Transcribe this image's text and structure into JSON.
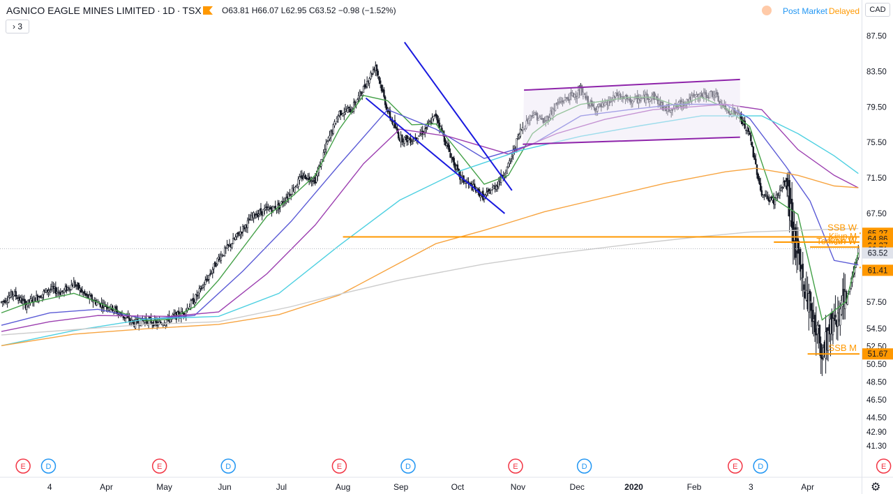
{
  "header": {
    "symbol": "AGNICO EAGLE MINES LIMITED",
    "interval": "1D",
    "exchange": "TSX",
    "ohlc": {
      "open": "63.81",
      "high": "66.07",
      "low": "62.95",
      "close": "63.52",
      "change": "−0.98 (−1.52%)"
    },
    "collapse_label": "3",
    "post_market": "Post Market",
    "delayed": "Delayed",
    "currency": "CAD"
  },
  "colors": {
    "up": "#131722",
    "down": "#131722",
    "ema_green": "#43a047",
    "ema_blue": "#5b5bd6",
    "ema_purple": "#9c3fb0",
    "ema_cyan": "#4dd0e1",
    "ema_orange": "#f7a440",
    "ema_grey": "#cccccc",
    "level": "#ff9800",
    "trendline_blue": "#1a1adf",
    "trendline_purple": "#8e24aa",
    "earnings": "#f23645",
    "dividend": "#2196f3"
  },
  "chart_data": {
    "type": "candlestick",
    "x_axis_labels": [
      "4",
      "Apr",
      "May",
      "Jun",
      "Jul",
      "Aug",
      "Sep",
      "Oct",
      "Nov",
      "Dec",
      "2020",
      "Feb",
      "3",
      "Apr"
    ],
    "y_axis_labels": [
      "87.50",
      "83.50",
      "79.50",
      "75.50",
      "71.50",
      "67.50",
      "57.50",
      "54.50",
      "52.50",
      "50.50",
      "48.50",
      "46.50",
      "44.50",
      "42.90",
      "41.30"
    ],
    "ylim": [
      40.6,
      89.2
    ],
    "price_path": [
      [
        0,
        57.5
      ],
      [
        10,
        58.5
      ],
      [
        20,
        57.2
      ],
      [
        30,
        58.1
      ],
      [
        40,
        59.0
      ],
      [
        50,
        58.6
      ],
      [
        60,
        59.6
      ],
      [
        70,
        58.2
      ],
      [
        80,
        57.4
      ],
      [
        90,
        57.0
      ],
      [
        100,
        56.0
      ],
      [
        110,
        55.1
      ],
      [
        120,
        55.5
      ],
      [
        130,
        55.0
      ],
      [
        140,
        55.7
      ],
      [
        150,
        56.2
      ],
      [
        160,
        57.8
      ],
      [
        170,
        60.0
      ],
      [
        180,
        62.5
      ],
      [
        190,
        64.0
      ],
      [
        200,
        65.8
      ],
      [
        210,
        67.4
      ],
      [
        220,
        67.9
      ],
      [
        230,
        68.3
      ],
      [
        240,
        70.0
      ],
      [
        250,
        71.8
      ],
      [
        260,
        71.3
      ],
      [
        270,
        75.5
      ],
      [
        280,
        78.9
      ],
      [
        290,
        79.2
      ],
      [
        300,
        81.6
      ],
      [
        310,
        84.2
      ],
      [
        320,
        79.0
      ],
      [
        330,
        76.0
      ],
      [
        340,
        75.8
      ],
      [
        350,
        76.8
      ],
      [
        360,
        78.6
      ],
      [
        370,
        74.8
      ],
      [
        380,
        71.5
      ],
      [
        390,
        70.5
      ],
      [
        400,
        69.3
      ],
      [
        410,
        70.7
      ],
      [
        420,
        72.8
      ],
      [
        430,
        76.8
      ],
      [
        440,
        78.8
      ],
      [
        450,
        77.8
      ],
      [
        460,
        79.8
      ],
      [
        470,
        80.6
      ],
      [
        480,
        81.2
      ],
      [
        490,
        79.4
      ],
      [
        500,
        79.6
      ],
      [
        510,
        80.8
      ],
      [
        520,
        80.2
      ],
      [
        530,
        80.4
      ],
      [
        540,
        80.8
      ],
      [
        550,
        79.2
      ],
      [
        560,
        79.6
      ],
      [
        570,
        80.4
      ],
      [
        580,
        80.8
      ],
      [
        590,
        81.0
      ],
      [
        600,
        79.2
      ],
      [
        610,
        78.8
      ],
      [
        620,
        76.2
      ],
      [
        630,
        69.6
      ],
      [
        640,
        68.9
      ],
      [
        650,
        71.1
      ],
      [
        660,
        62.0
      ],
      [
        670,
        57.0
      ],
      [
        680,
        52.0
      ],
      [
        690,
        55.8
      ],
      [
        700,
        57.5
      ],
      [
        710,
        63.5
      ]
    ],
    "series": [
      {
        "name": "",
        "color": "ema_green",
        "values": [
          [
            0,
            56.3
          ],
          [
            20,
            57.3
          ],
          [
            40,
            57.9
          ],
          [
            60,
            58.5
          ],
          [
            80,
            57.5
          ],
          [
            100,
            56.3
          ],
          [
            120,
            55.4
          ],
          [
            140,
            55.6
          ],
          [
            160,
            57.0
          ],
          [
            180,
            60.0
          ],
          [
            200,
            63.6
          ],
          [
            220,
            67.2
          ],
          [
            240,
            69.3
          ],
          [
            260,
            71.8
          ],
          [
            280,
            77.0
          ],
          [
            300,
            80.8
          ],
          [
            320,
            80.2
          ],
          [
            340,
            77.5
          ],
          [
            360,
            77.6
          ],
          [
            380,
            74.2
          ],
          [
            400,
            70.8
          ],
          [
            420,
            71.8
          ],
          [
            440,
            76.5
          ],
          [
            460,
            78.6
          ],
          [
            480,
            79.8
          ],
          [
            500,
            80.2
          ],
          [
            520,
            80.6
          ],
          [
            540,
            80.6
          ],
          [
            560,
            79.6
          ],
          [
            580,
            80.6
          ],
          [
            600,
            79.4
          ],
          [
            620,
            77.3
          ],
          [
            640,
            69.2
          ],
          [
            660,
            67.4
          ],
          [
            680,
            55.5
          ],
          [
            700,
            57.6
          ],
          [
            710,
            63.1
          ]
        ]
      },
      {
        "name": "",
        "color": "ema_blue",
        "values": [
          [
            0,
            54.9
          ],
          [
            40,
            56.3
          ],
          [
            80,
            56.7
          ],
          [
            120,
            55.6
          ],
          [
            160,
            56.0
          ],
          [
            200,
            61.0
          ],
          [
            240,
            66.6
          ],
          [
            280,
            73.0
          ],
          [
            320,
            79.2
          ],
          [
            360,
            77.0
          ],
          [
            400,
            73.7
          ],
          [
            440,
            75.3
          ],
          [
            480,
            78.5
          ],
          [
            520,
            79.2
          ],
          [
            560,
            79.8
          ],
          [
            600,
            79.8
          ],
          [
            620,
            78.2
          ],
          [
            650,
            72.8
          ],
          [
            670,
            68.9
          ],
          [
            690,
            62.2
          ],
          [
            710,
            61.7
          ]
        ]
      },
      {
        "name": "",
        "color": "ema_purple",
        "values": [
          [
            0,
            54.2
          ],
          [
            40,
            55.3
          ],
          [
            80,
            56.0
          ],
          [
            140,
            55.9
          ],
          [
            180,
            56.4
          ],
          [
            220,
            60.7
          ],
          [
            260,
            66.2
          ],
          [
            300,
            73.1
          ],
          [
            330,
            77.0
          ],
          [
            370,
            76.2
          ],
          [
            420,
            74.2
          ],
          [
            460,
            76.5
          ],
          [
            500,
            78.1
          ],
          [
            540,
            79.2
          ],
          [
            600,
            79.8
          ],
          [
            630,
            79.2
          ],
          [
            660,
            74.7
          ],
          [
            690,
            71.8
          ],
          [
            710,
            70.4
          ]
        ]
      },
      {
        "name": "",
        "color": "ema_cyan",
        "values": [
          [
            0,
            52.6
          ],
          [
            60,
            54.3
          ],
          [
            120,
            55.6
          ],
          [
            180,
            55.9
          ],
          [
            230,
            58.5
          ],
          [
            280,
            63.9
          ],
          [
            330,
            69.0
          ],
          [
            380,
            72.3
          ],
          [
            430,
            74.6
          ],
          [
            480,
            76.2
          ],
          [
            530,
            77.4
          ],
          [
            580,
            78.5
          ],
          [
            630,
            78.5
          ],
          [
            660,
            76.5
          ],
          [
            690,
            74.0
          ],
          [
            710,
            72.0
          ]
        ]
      },
      {
        "name": "",
        "color": "ema_orange",
        "values": [
          [
            0,
            52.6
          ],
          [
            60,
            53.9
          ],
          [
            120,
            54.5
          ],
          [
            180,
            55.0
          ],
          [
            230,
            56.1
          ],
          [
            280,
            58.3
          ],
          [
            320,
            61.2
          ],
          [
            360,
            64.1
          ],
          [
            400,
            65.6
          ],
          [
            450,
            67.7
          ],
          [
            500,
            69.3
          ],
          [
            550,
            70.9
          ],
          [
            600,
            72.2
          ],
          [
            625,
            72.6
          ],
          [
            660,
            71.8
          ],
          [
            690,
            70.6
          ],
          [
            710,
            70.4
          ]
        ]
      },
      {
        "name": "",
        "color": "ema_grey",
        "values": [
          [
            0,
            53.8
          ],
          [
            60,
            54.4
          ],
          [
            120,
            55.0
          ],
          [
            180,
            55.3
          ],
          [
            240,
            57.0
          ],
          [
            280,
            58.4
          ],
          [
            330,
            60.0
          ],
          [
            400,
            61.8
          ],
          [
            460,
            63.0
          ],
          [
            520,
            64.0
          ],
          [
            580,
            64.9
          ],
          [
            620,
            65.4
          ],
          [
            660,
            65.6
          ],
          [
            710,
            65.8
          ]
        ]
      }
    ],
    "levels": [
      {
        "label": "SSB W",
        "price_label": "65.27",
        "value": 65.27
      },
      {
        "label": "",
        "price_label": "64.86",
        "value": 64.86
      },
      {
        "label": "",
        "price_label": "64.27",
        "value": 64.27
      },
      {
        "label": "Tenkan W",
        "price_label": "63.71",
        "value": 63.71
      },
      {
        "label": "",
        "price_label": "63.52",
        "value": 63.52
      },
      {
        "label": "",
        "price_label": "61.41",
        "value": 61.41
      },
      {
        "label": "SSB M",
        "price_label": "51.67",
        "value": 51.67
      }
    ],
    "overlapping_labels": [
      "Kijun M",
      "Kijun W"
    ],
    "current_price": 63.52,
    "events": [
      {
        "type": "E",
        "bar": 18
      },
      {
        "type": "D",
        "bar": 39
      },
      {
        "type": "E",
        "bar": 131
      },
      {
        "type": "D",
        "bar": 188
      },
      {
        "type": "E",
        "bar": 280
      },
      {
        "type": "D",
        "bar": 337
      },
      {
        "type": "E",
        "bar": 426
      },
      {
        "type": "D",
        "bar": 483
      },
      {
        "type": "E",
        "bar": 608
      },
      {
        "type": "D",
        "bar": 629
      },
      {
        "type": "E",
        "bar": 731
      }
    ],
    "trendlines": [
      {
        "color": "trendline_blue",
        "from": [
          334,
          86.8
        ],
        "to": [
          423,
          70.1
        ]
      },
      {
        "color": "trendline_blue",
        "from": [
          302,
          80.5
        ],
        "to": [
          417,
          67.5
        ]
      },
      {
        "color": "trendline_purple",
        "from": [
          433,
          81.4
        ],
        "to": [
          612,
          82.6
        ]
      },
      {
        "color": "trendline_purple",
        "from": [
          432,
          75.3
        ],
        "to": [
          612,
          76.1
        ]
      }
    ]
  }
}
